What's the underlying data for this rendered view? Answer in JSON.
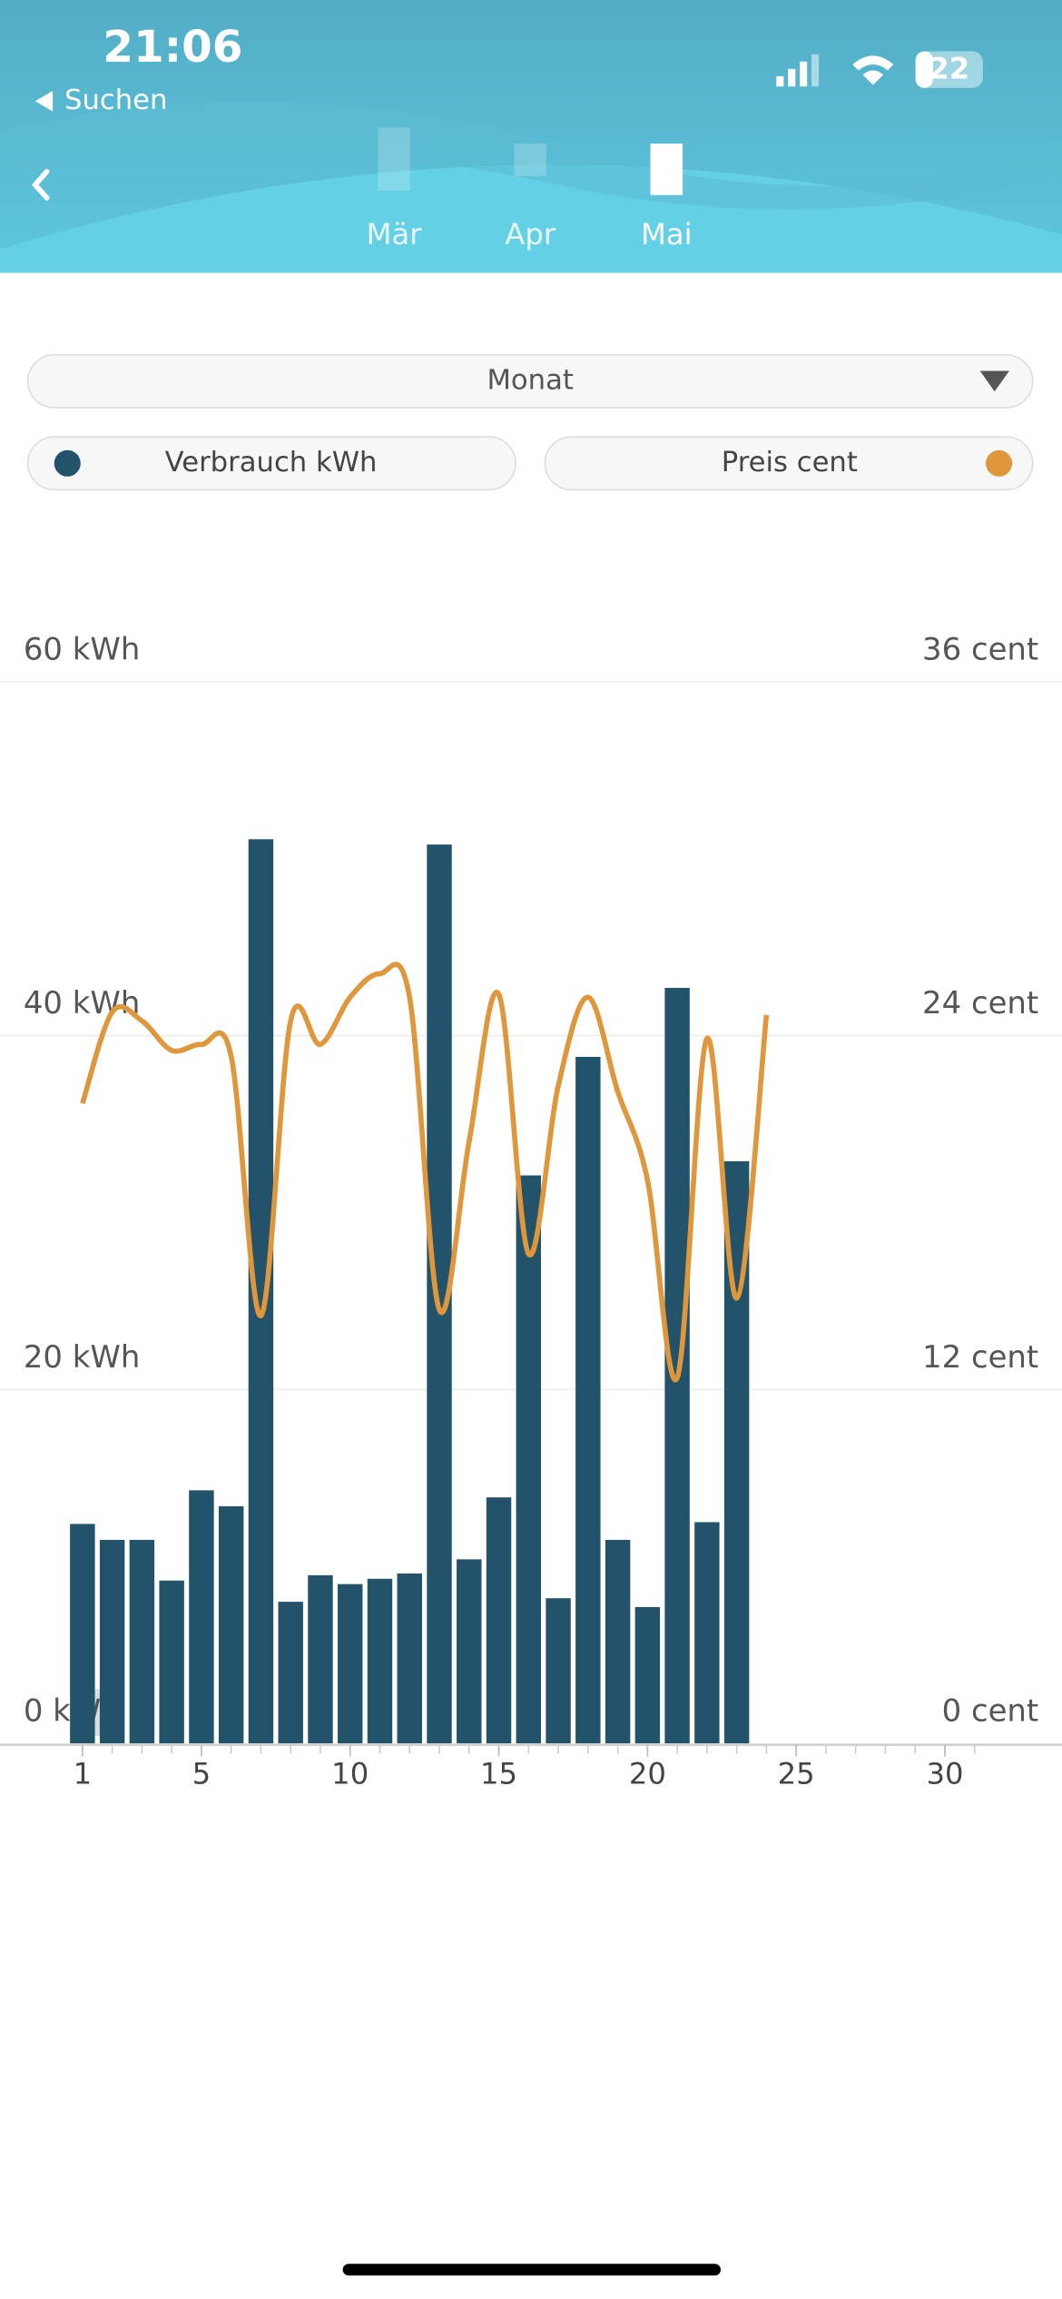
{
  "status": {
    "time": "21:06",
    "back": "Suchen",
    "battery": "22"
  },
  "months": [
    "Mär",
    "Apr",
    "Mai"
  ],
  "dropdown": "Monat",
  "chart_data": {
    "type": "bar",
    "x": [
      1,
      2,
      3,
      4,
      5,
      6,
      7,
      8,
      9,
      10,
      11,
      12,
      13,
      14,
      15,
      16,
      17,
      18,
      19,
      20,
      21,
      22,
      23
    ],
    "series": [
      {
        "name": "Verbrauch kWh",
        "color": "#23536a",
        "values": [
          12.4,
          11.5,
          11.5,
          9.2,
          14.3,
          13.4,
          51.1,
          8.0,
          9.5,
          9.0,
          9.3,
          9.6,
          50.8,
          10.4,
          13.9,
          32.1,
          8.2,
          38.8,
          11.5,
          7.7,
          42.7,
          12.5,
          32.9
        ]
      },
      {
        "name": "Preis cent",
        "color": "#e0963a",
        "axis": "y2",
        "type": "line",
        "x": [
          1,
          2,
          3,
          4,
          5,
          6,
          7,
          8,
          9,
          10,
          11,
          12,
          13,
          14,
          15,
          16,
          17,
          18,
          19,
          20,
          21,
          22,
          23,
          24
        ],
        "values": [
          21.7,
          24.8,
          24.5,
          23.5,
          23.7,
          23.3,
          14.5,
          24.5,
          23.7,
          25.3,
          26.1,
          25.3,
          14.7,
          20.4,
          25.4,
          16.6,
          22.3,
          25.3,
          22.1,
          19.1,
          12.4,
          23.9,
          15.1,
          24.7
        ]
      }
    ],
    "xlim": [
      0,
      31.5
    ],
    "xticks": [
      1,
      5,
      10,
      15,
      20,
      25,
      30
    ],
    "ylim": [
      0,
      60
    ],
    "yticks": [
      {
        "value": 0,
        "label": "0 kWh"
      },
      {
        "value": 20,
        "label": "20 kWh"
      },
      {
        "value": 40,
        "label": "40 kWh"
      },
      {
        "value": 60,
        "label": "60 kWh"
      }
    ],
    "y2lim": [
      0,
      36
    ],
    "y2ticks": [
      {
        "value": 0,
        "label": "0 cent"
      },
      {
        "value": 12,
        "label": "12 cent"
      },
      {
        "value": 24,
        "label": "24 cent"
      },
      {
        "value": 36,
        "label": "36 cent"
      }
    ],
    "grid": true
  }
}
